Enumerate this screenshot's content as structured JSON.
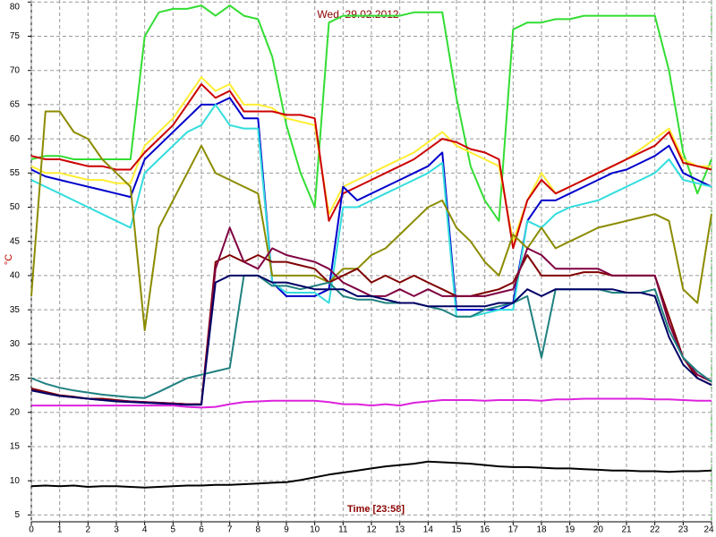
{
  "chart_data": {
    "type": "line",
    "title": "Wed, 29.02.2012",
    "x_label": "Time [23:58]",
    "y_label": "°C",
    "x": [
      0,
      0.5,
      1,
      1.5,
      2,
      2.5,
      3,
      3.5,
      4,
      4.5,
      5,
      5.5,
      6,
      6.5,
      7,
      7.5,
      8,
      8.5,
      9,
      9.5,
      10,
      10.5,
      11,
      11.5,
      12,
      12.5,
      13,
      13.5,
      14,
      14.5,
      15,
      15.5,
      16,
      16.5,
      17,
      17.5,
      18,
      18.5,
      19,
      19.5,
      20,
      20.5,
      21,
      21.5,
      22,
      22.5,
      23,
      23.5,
      24
    ],
    "xlim": [
      0,
      24
    ],
    "xticks": [
      0,
      1,
      2,
      3,
      4,
      5,
      6,
      7,
      8,
      9,
      10,
      11,
      12,
      13,
      14,
      15,
      16,
      17,
      18,
      19,
      20,
      21,
      22,
      23,
      24
    ],
    "ylim": [
      4,
      80.3
    ],
    "yticks": [
      5,
      10,
      15,
      20,
      25,
      30,
      35,
      40,
      45,
      50,
      55,
      60,
      65,
      70,
      75,
      80
    ],
    "grid": true,
    "series": [
      {
        "color": "#33dd33",
        "values": [
          57,
          57.5,
          57.5,
          57,
          57,
          57,
          57,
          57,
          75,
          78.5,
          79,
          79,
          79.5,
          78,
          79.5,
          78,
          77.5,
          72,
          62,
          55,
          50,
          77,
          78,
          78,
          78,
          78,
          78,
          78.5,
          78.5,
          78.5,
          66,
          56,
          51,
          48,
          76,
          77,
          77,
          77.5,
          77.5,
          78,
          78,
          78,
          78,
          78,
          78,
          70,
          58,
          52,
          57
        ]
      },
      {
        "color": "#ffee33",
        "values": [
          56,
          55,
          55,
          54.5,
          54,
          54,
          53.5,
          53.5,
          59,
          61,
          63,
          66,
          69,
          67,
          68,
          65,
          65,
          64.5,
          63,
          62.5,
          62,
          49,
          53,
          54,
          55,
          56,
          57,
          58,
          59.5,
          61,
          59,
          58,
          57,
          56,
          45,
          51,
          55,
          52,
          53,
          54,
          55,
          56,
          57,
          58.5,
          60,
          61.5,
          57,
          56,
          56
        ]
      },
      {
        "color": "#cc0000",
        "values": [
          57.5,
          57,
          57,
          56.5,
          56,
          56,
          55.5,
          55.5,
          58,
          60,
          62,
          65,
          68,
          66,
          67,
          64,
          64,
          64,
          63.5,
          63.5,
          63,
          48,
          52,
          53,
          54,
          55,
          56,
          57,
          58.5,
          60,
          59.5,
          58.5,
          58,
          57,
          44,
          51,
          54,
          52,
          53,
          54,
          55,
          56,
          57,
          58,
          59,
          61,
          56.5,
          56,
          55.5
        ]
      },
      {
        "color": "#0000cc",
        "values": [
          55.5,
          54.5,
          54,
          53.5,
          53,
          52.5,
          52,
          51.5,
          57,
          59,
          61,
          63,
          65,
          65,
          66,
          63,
          63,
          39,
          37,
          37,
          37,
          38,
          53,
          51,
          52,
          53,
          54,
          55,
          56,
          58,
          35,
          35,
          35,
          35,
          36,
          48,
          51,
          51,
          52,
          53,
          54,
          55,
          55.5,
          56.5,
          57.5,
          59,
          55,
          54,
          53
        ]
      },
      {
        "color": "#33dddd",
        "values": [
          54,
          53,
          52,
          51,
          50,
          49,
          48,
          47,
          55,
          57,
          59,
          61,
          62,
          65,
          62,
          61.5,
          61.5,
          39,
          37.5,
          37.5,
          37.5,
          36,
          50,
          50,
          51,
          52,
          53,
          54,
          55,
          56.5,
          34,
          34,
          34.5,
          35,
          35,
          48,
          47,
          49,
          50,
          50.5,
          51,
          52,
          53,
          54,
          55,
          57,
          54,
          53.5,
          53
        ]
      },
      {
        "color": "#8b8b00",
        "values": [
          37,
          64,
          64,
          61,
          60,
          57,
          55,
          53,
          32,
          47,
          51,
          55,
          59,
          55,
          54,
          53,
          52,
          40,
          40,
          40,
          40,
          39,
          41,
          41,
          43,
          44,
          46,
          48,
          50,
          51,
          47,
          45,
          42,
          40,
          46,
          44,
          47,
          44,
          45,
          46,
          47,
          47.5,
          48,
          48.5,
          49,
          48,
          38,
          36,
          49
        ]
      },
      {
        "color": "#800000",
        "values": [
          23.5,
          23,
          22.5,
          22.3,
          22,
          22,
          21.8,
          21.6,
          21.5,
          21.4,
          21.3,
          21.2,
          21.2,
          42,
          43,
          42,
          43,
          42,
          42,
          41.5,
          41,
          39,
          40,
          41,
          39,
          40,
          39,
          40,
          39,
          38,
          37,
          37,
          37.5,
          38,
          39,
          43,
          40,
          40,
          40,
          40.5,
          40.5,
          40,
          40,
          40,
          40,
          34,
          28,
          25,
          24
        ]
      },
      {
        "color": "#800040",
        "values": [
          23.3,
          22.8,
          22.4,
          22.2,
          22,
          21.8,
          21.7,
          21.6,
          21.5,
          21.4,
          21.3,
          21.2,
          21.2,
          41,
          47,
          42,
          41,
          44,
          43,
          42.5,
          42,
          41,
          39,
          38,
          37,
          37,
          38,
          37,
          38,
          37,
          37,
          37,
          37,
          37.5,
          38,
          44,
          43,
          41,
          41,
          41,
          41,
          40,
          40,
          40,
          40,
          33,
          28,
          25.5,
          24.5
        ]
      },
      {
        "color": "#208080",
        "values": [
          25,
          24.2,
          23.6,
          23.2,
          22.9,
          22.6,
          22.4,
          22.2,
          22.1,
          23,
          24,
          25,
          25.5,
          26,
          26.5,
          40,
          40,
          38.5,
          38.5,
          38,
          38.5,
          39,
          37,
          36.5,
          36.5,
          36,
          36,
          36,
          35.5,
          35,
          34,
          34,
          35,
          35.5,
          36,
          37,
          28,
          38,
          38,
          38,
          38,
          37.5,
          37.5,
          37.5,
          38,
          32,
          28,
          26,
          24.5
        ]
      },
      {
        "color": "#000066",
        "values": [
          23.2,
          22.8,
          22.4,
          22.2,
          22,
          21.8,
          21.6,
          21.5,
          21.4,
          21.3,
          21.2,
          21.1,
          21.1,
          39,
          40,
          40,
          40,
          39,
          39,
          38.5,
          38,
          38,
          38,
          37,
          37,
          36.5,
          36,
          36,
          35.5,
          35.5,
          35.5,
          35.5,
          35.5,
          36,
          36,
          38,
          37,
          38,
          38,
          38,
          38,
          38,
          37.5,
          37.5,
          37,
          31,
          27,
          25,
          24
        ]
      },
      {
        "color": "#dd22dd",
        "values": [
          21,
          21,
          21,
          21,
          21,
          21,
          21,
          21,
          21,
          21,
          21,
          20.8,
          20.7,
          20.8,
          21.2,
          21.5,
          21.6,
          21.7,
          21.7,
          21.7,
          21.7,
          21.5,
          21.2,
          21.2,
          21,
          21.2,
          21,
          21.4,
          21.6,
          21.8,
          21.8,
          21.8,
          21.7,
          21.8,
          21.8,
          21.8,
          21.7,
          21.9,
          21.9,
          22,
          22,
          22,
          22,
          22,
          21.9,
          21.9,
          21.8,
          21.7,
          21.7
        ]
      },
      {
        "color": "#000000",
        "values": [
          9.2,
          9.3,
          9.2,
          9.3,
          9.1,
          9.2,
          9.2,
          9.1,
          9,
          9.1,
          9.2,
          9.3,
          9.3,
          9.4,
          9.4,
          9.5,
          9.6,
          9.7,
          9.8,
          10.1,
          10.5,
          10.9,
          11.2,
          11.5,
          11.8,
          12.1,
          12.3,
          12.5,
          12.8,
          12.7,
          12.6,
          12.5,
          12.3,
          12.1,
          12,
          12,
          11.9,
          11.8,
          11.8,
          11.7,
          11.6,
          11.5,
          11.5,
          11.4,
          11.4,
          11.3,
          11.4,
          11.4,
          11.5
        ]
      }
    ]
  }
}
